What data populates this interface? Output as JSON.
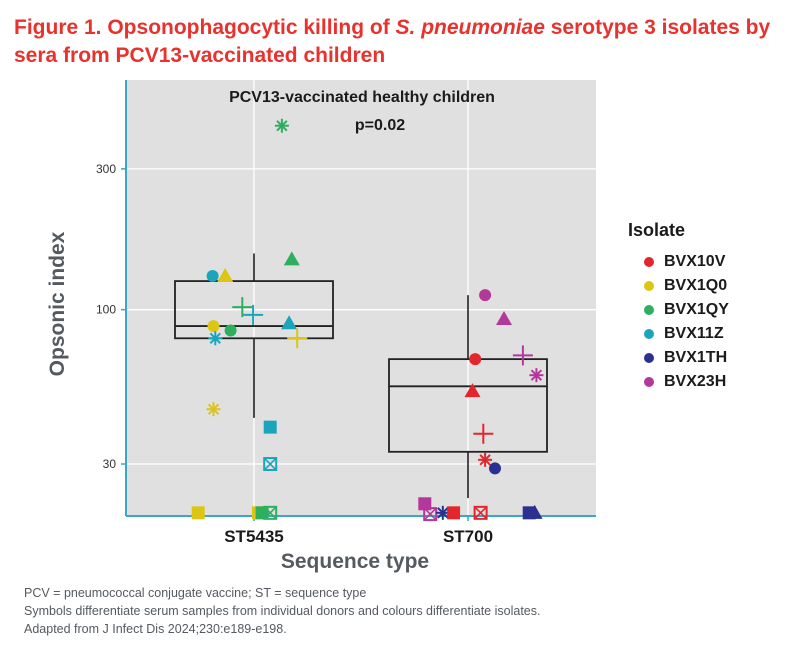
{
  "figure": {
    "title_prefix": "Figure 1. Opsonophagocytic killing of ",
    "title_italic": "S. pneumoniae",
    "title_suffix": " serotype 3 isolates by sera from PCV13-vaccinated children"
  },
  "chart_data": {
    "type": "scatter",
    "subtitle": "PCV13-vaccinated healthy children",
    "annotation": "p=0.02",
    "xlabel": "Sequence type",
    "ylabel": "Opsonic index",
    "y_scale": "log",
    "ylim": [
      20,
      600
    ],
    "y_ticks": [
      30,
      100,
      300
    ],
    "categories": [
      "ST5435",
      "ST700"
    ],
    "grid": true,
    "legend_title": "Isolate",
    "legend_position": "right",
    "series": [
      {
        "name": "BVX10V",
        "color": "#e3262b"
      },
      {
        "name": "BVX1Q0",
        "color": "#ddc514"
      },
      {
        "name": "BVX1QY",
        "color": "#2eaf5e"
      },
      {
        "name": "BVX11Z",
        "color": "#1ba5bd"
      },
      {
        "name": "BVX1TH",
        "color": "#2b3190"
      },
      {
        "name": "BVX23H",
        "color": "#b4389a"
      }
    ],
    "boxes": [
      {
        "category": "ST5435",
        "min": 43,
        "q1": 80,
        "median": 88,
        "q3": 125,
        "max": 155
      },
      {
        "category": "ST700",
        "min": 23,
        "q1": 33,
        "median": 55,
        "q3": 68,
        "max": 112
      }
    ],
    "points": [
      {
        "category": "ST5435",
        "offset": -0.62,
        "y": 20.5,
        "series": "BVX1Q0",
        "marker": "square"
      },
      {
        "category": "ST5435",
        "offset": -0.46,
        "y": 130,
        "series": "BVX11Z",
        "marker": "circle"
      },
      {
        "category": "ST5435",
        "offset": -0.32,
        "y": 130,
        "series": "BVX1Q0",
        "marker": "triangle"
      },
      {
        "category": "ST5435",
        "offset": -0.45,
        "y": 88,
        "series": "BVX1Q0",
        "marker": "circle"
      },
      {
        "category": "ST5435",
        "offset": -0.43,
        "y": 80,
        "series": "BVX11Z",
        "marker": "asterisk"
      },
      {
        "category": "ST5435",
        "offset": -0.45,
        "y": 46,
        "series": "BVX1Q0",
        "marker": "asterisk"
      },
      {
        "category": "ST5435",
        "offset": -0.26,
        "y": 85,
        "series": "BVX1QY",
        "marker": "circle"
      },
      {
        "category": "ST5435",
        "offset": -0.13,
        "y": 102,
        "series": "BVX1QY",
        "marker": "plus"
      },
      {
        "category": "ST5435",
        "offset": -0.01,
        "y": 96,
        "series": "BVX11Z",
        "marker": "plus"
      },
      {
        "category": "ST5435",
        "offset": 0.05,
        "y": 20.5,
        "series": "BVX1Q0",
        "marker": "square"
      },
      {
        "category": "ST5435",
        "offset": 0.09,
        "y": 20.5,
        "series": "BVX1QY",
        "marker": "square"
      },
      {
        "category": "ST5435",
        "offset": 0.18,
        "y": 40,
        "series": "BVX11Z",
        "marker": "square"
      },
      {
        "category": "ST5435",
        "offset": 0.18,
        "y": 30,
        "series": "BVX11Z",
        "marker": "boxx"
      },
      {
        "category": "ST5435",
        "offset": 0.18,
        "y": 20.5,
        "series": "BVX1QY",
        "marker": "boxx"
      },
      {
        "category": "ST5435",
        "offset": 0.31,
        "y": 420,
        "series": "BVX1QY",
        "marker": "asterisk"
      },
      {
        "category": "ST5435",
        "offset": 0.42,
        "y": 148,
        "series": "BVX1QY",
        "marker": "triangle"
      },
      {
        "category": "ST5435",
        "offset": 0.39,
        "y": 90,
        "series": "BVX11Z",
        "marker": "triangle"
      },
      {
        "category": "ST5435",
        "offset": 0.48,
        "y": 80,
        "series": "BVX1Q0",
        "marker": "plus"
      },
      {
        "category": "ST700",
        "offset": -0.48,
        "y": 22,
        "series": "BVX23H",
        "marker": "square"
      },
      {
        "category": "ST700",
        "offset": -0.42,
        "y": 20.3,
        "series": "BVX23H",
        "marker": "boxx"
      },
      {
        "category": "ST700",
        "offset": -0.28,
        "y": 20.5,
        "series": "BVX1TH",
        "marker": "asterisk"
      },
      {
        "category": "ST700",
        "offset": -0.16,
        "y": 20.5,
        "series": "BVX10V",
        "marker": "square"
      },
      {
        "category": "ST700",
        "offset": 0.08,
        "y": 68,
        "series": "BVX10V",
        "marker": "circle"
      },
      {
        "category": "ST700",
        "offset": 0.05,
        "y": 53,
        "series": "BVX10V",
        "marker": "triangle"
      },
      {
        "category": "ST700",
        "offset": 0.17,
        "y": 38,
        "series": "BVX10V",
        "marker": "plus"
      },
      {
        "category": "ST700",
        "offset": 0.19,
        "y": 31,
        "series": "BVX10V",
        "marker": "asterisk"
      },
      {
        "category": "ST700",
        "offset": 0.14,
        "y": 20.5,
        "series": "BVX10V",
        "marker": "boxx"
      },
      {
        "category": "ST700",
        "offset": 0.19,
        "y": 112,
        "series": "BVX23H",
        "marker": "circle"
      },
      {
        "category": "ST700",
        "offset": 0.4,
        "y": 93,
        "series": "BVX23H",
        "marker": "triangle"
      },
      {
        "category": "ST700",
        "offset": 0.61,
        "y": 70,
        "series": "BVX23H",
        "marker": "plus"
      },
      {
        "category": "ST700",
        "offset": 0.76,
        "y": 60,
        "series": "BVX23H",
        "marker": "asterisk"
      },
      {
        "category": "ST700",
        "offset": 0.3,
        "y": 29,
        "series": "BVX1TH",
        "marker": "circle"
      },
      {
        "category": "ST700",
        "offset": 0.68,
        "y": 20.5,
        "series": "BVX1TH",
        "marker": "square"
      },
      {
        "category": "ST700",
        "offset": 0.74,
        "y": 20.5,
        "series": "BVX1TH",
        "marker": "triangle"
      }
    ]
  },
  "footnotes": [
    "PCV = pneumococcal conjugate vaccine; ST = sequence type",
    "Symbols differentiate serum samples from individual donors and colours differentiate isolates.",
    "Adapted from J Infect Dis 2024;230:e189-e198."
  ]
}
